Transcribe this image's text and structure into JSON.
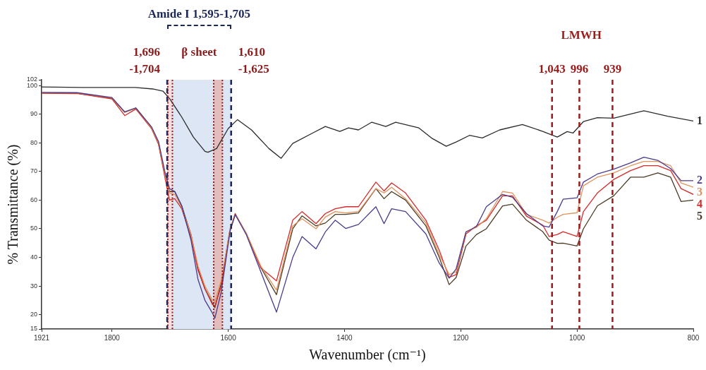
{
  "chart_data": {
    "type": "line",
    "xlabel": "Wavenumber (cm⁻¹)",
    "ylabel": "% Transmittance (%)",
    "xlim": [
      1921,
      800
    ],
    "xticks": [
      1921,
      1800,
      1600,
      1400,
      1200,
      1000,
      800
    ],
    "ylim": [
      15,
      102
    ],
    "yticks": [
      15,
      20,
      30,
      40,
      50,
      60,
      70,
      80,
      90,
      100,
      102
    ],
    "x": [
      1921,
      1860,
      1800,
      1778,
      1759,
      1732,
      1720,
      1708,
      1701,
      1692,
      1680,
      1664,
      1652,
      1640,
      1627,
      1623,
      1612,
      1597,
      1588,
      1569,
      1544,
      1517,
      1489,
      1473,
      1449,
      1433,
      1416,
      1398,
      1376,
      1346,
      1332,
      1319,
      1295,
      1260,
      1237,
      1220,
      1208,
      1191,
      1173,
      1156,
      1128,
      1111,
      1087,
      1059,
      1048,
      1034,
      1024,
      1000,
      989,
      965,
      937,
      908,
      885,
      861,
      839,
      821,
      800
    ],
    "series": [
      {
        "name": "1",
        "color": "#2b2b2b",
        "x": [
          1921,
          1850,
          1760,
          1730,
          1712,
          1700,
          1680,
          1660,
          1640,
          1635,
          1620,
          1600,
          1584,
          1560,
          1530,
          1509,
          1489,
          1455,
          1433,
          1408,
          1393,
          1376,
          1353,
          1329,
          1312,
          1272,
          1249,
          1225,
          1208,
          1185,
          1163,
          1133,
          1094,
          1059,
          1034,
          1017,
          1007,
          989,
          965,
          937,
          885,
          844,
          800
        ],
        "values": [
          99.5,
          99.3,
          99.3,
          98.8,
          98,
          95.2,
          89,
          82,
          77,
          76.7,
          78,
          85,
          88.1,
          84.5,
          78,
          74.6,
          79.8,
          83.4,
          85.7,
          84,
          85.2,
          84.5,
          87.2,
          85.7,
          87.2,
          85.2,
          81.5,
          78.8,
          80.3,
          82.6,
          81.7,
          84.5,
          86.4,
          84,
          82,
          83.9,
          83.4,
          87.4,
          88.8,
          88.6,
          91.2,
          89.3,
          87.6
        ]
      },
      {
        "name": "2",
        "color": "#4a3a8c",
        "values": [
          97.6,
          97.5,
          95.8,
          90.8,
          92.2,
          85.6,
          80.5,
          69,
          64,
          63,
          58,
          46,
          32.3,
          25,
          20.5,
          18.8,
          28,
          49,
          55,
          48,
          35,
          20.9,
          40,
          47.3,
          43,
          48.9,
          53,
          50.1,
          51.5,
          57.7,
          51.8,
          57,
          56,
          48.2,
          38,
          32.8,
          36,
          48.9,
          50.8,
          57.7,
          62,
          61,
          55.3,
          51,
          50.6,
          56,
          60.3,
          60.8,
          66.3,
          69.1,
          70.8,
          73,
          75,
          73.9,
          71,
          66.8,
          66.8
        ]
      },
      {
        "name": "3",
        "color": "#e0925e",
        "values": [
          97.5,
          97.4,
          95.7,
          90.6,
          92.1,
          85.3,
          80,
          68,
          62.5,
          62,
          57.5,
          48,
          37,
          30,
          25,
          24.5,
          32,
          50,
          55,
          48.5,
          37,
          28.6,
          51,
          53.5,
          50,
          54.1,
          56,
          55.5,
          56,
          64,
          62.5,
          64.5,
          60.5,
          52,
          41,
          34,
          35,
          49,
          50.5,
          53.5,
          63,
          62.5,
          55,
          53,
          52,
          54,
          55,
          55.6,
          65,
          68,
          69.5,
          72,
          73.5,
          73.5,
          72,
          66,
          64.5
        ]
      },
      {
        "name": "4",
        "color": "#d42a2a",
        "values": [
          97.3,
          97.2,
          95.3,
          89.5,
          91.8,
          85,
          79.5,
          67,
          60,
          60.5,
          57,
          47,
          35.5,
          29,
          23.5,
          23,
          30,
          49.6,
          55.3,
          48.2,
          36.4,
          31.8,
          53,
          56,
          51.8,
          55.3,
          57,
          57.7,
          57.7,
          66.3,
          63.2,
          66,
          62.5,
          53,
          42.5,
          33,
          34,
          48.2,
          51,
          53,
          61.5,
          61.5,
          54.4,
          51.3,
          47.3,
          48,
          49,
          47.3,
          56,
          62.5,
          67.2,
          70.3,
          72,
          72,
          70.3,
          64,
          62
        ]
      },
      {
        "name": "5",
        "color": "#4a3a22",
        "values": [
          97.4,
          97.3,
          95.5,
          90.7,
          92.1,
          85.2,
          80,
          68,
          63,
          63,
          58,
          48,
          36,
          29,
          24,
          22.5,
          31,
          49.5,
          55,
          48.4,
          36.5,
          27,
          50,
          54.5,
          51,
          52,
          55,
          55,
          55.5,
          64,
          60.5,
          63,
          60,
          51,
          40,
          30.5,
          33,
          44,
          48,
          50,
          58,
          58.6,
          53,
          49,
          46,
          44.9,
          45,
          44,
          50,
          58,
          61.5,
          68,
          68,
          69.5,
          68,
          59.5,
          60
        ]
      }
    ],
    "bands": [
      {
        "axis": "x",
        "from": 1595,
        "to": 1705,
        "color": "#dce6f5",
        "label": "β sheet"
      },
      {
        "axis": "x",
        "from": 1696,
        "to": 1704,
        "color": "#f6dede",
        "label": "1,696\n-1,704"
      },
      {
        "axis": "x",
        "from": 1610,
        "to": 1625,
        "color": "#e3bcbc",
        "label": "1,610\n-1,625"
      }
    ],
    "ref_lines": [
      {
        "axis": "x",
        "value": 1705,
        "color": "#1c2657",
        "line_style": "dashed"
      },
      {
        "axis": "x",
        "value": 1595,
        "color": "#1c2657",
        "line_style": "dashed"
      },
      {
        "axis": "x",
        "value": 1704,
        "color": "#8b1a1a",
        "line_style": "dotted"
      },
      {
        "axis": "x",
        "value": 1696,
        "color": "#8b1a1a",
        "line_style": "dotted"
      },
      {
        "axis": "x",
        "value": 1625,
        "color": "#8b1a1a",
        "line_style": "dotted"
      },
      {
        "axis": "x",
        "value": 1610,
        "color": "#8b1a1a",
        "line_style": "dotted"
      },
      {
        "axis": "x",
        "value": 1043,
        "color": "#9b1b1b",
        "line_style": "dashed",
        "label": "1,043"
      },
      {
        "axis": "x",
        "value": 996,
        "color": "#9b1b1b",
        "line_style": "dashed",
        "label": "996"
      },
      {
        "axis": "x",
        "value": 939,
        "color": "#9b1b1b",
        "line_style": "dashed",
        "label": "939"
      }
    ],
    "annotations": [
      "Amide I 1,595-1,705",
      "LMWH"
    ]
  }
}
